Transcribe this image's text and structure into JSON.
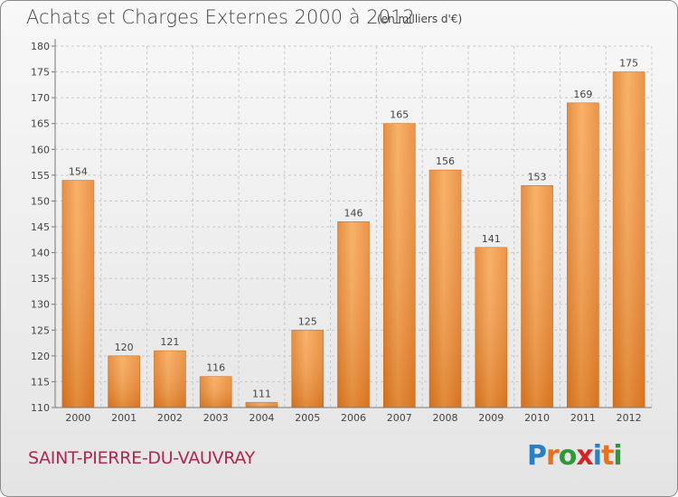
{
  "title": "Achats et Charges Externes 2000 à 2012",
  "subtitle": "(en milliers d'€)",
  "commune": "SAINT-PIERRE-DU-VAUVRAY",
  "logo": {
    "letters": [
      "P",
      "r",
      "o",
      "x",
      "i",
      "t",
      "i"
    ],
    "colors": [
      "#2c7fc2",
      "#e8701e",
      "#2c9a3a",
      "#d62424",
      "#2c7fc2",
      "#e8701e",
      "#2c9a3a"
    ]
  },
  "chart_data": {
    "type": "bar",
    "categories": [
      "2000",
      "2001",
      "2002",
      "2003",
      "2004",
      "2005",
      "2006",
      "2007",
      "2008",
      "2009",
      "2010",
      "2011",
      "2012"
    ],
    "values": [
      154,
      120,
      121,
      116,
      111,
      125,
      146,
      165,
      156,
      141,
      153,
      169,
      175
    ],
    "data_labels": [
      "154",
      "120",
      "121",
      "116",
      "111",
      "125",
      "146",
      "165",
      "156",
      "141",
      "153",
      "169",
      "175"
    ],
    "title": "Achats et Charges Externes 2000 à 2012",
    "xlabel": "",
    "ylabel": "",
    "ylim": [
      110,
      180
    ],
    "yticks": [
      110,
      115,
      120,
      125,
      130,
      135,
      140,
      145,
      150,
      155,
      160,
      165,
      170,
      175,
      180
    ],
    "grid": true,
    "bar_color": "#ef8a30"
  }
}
